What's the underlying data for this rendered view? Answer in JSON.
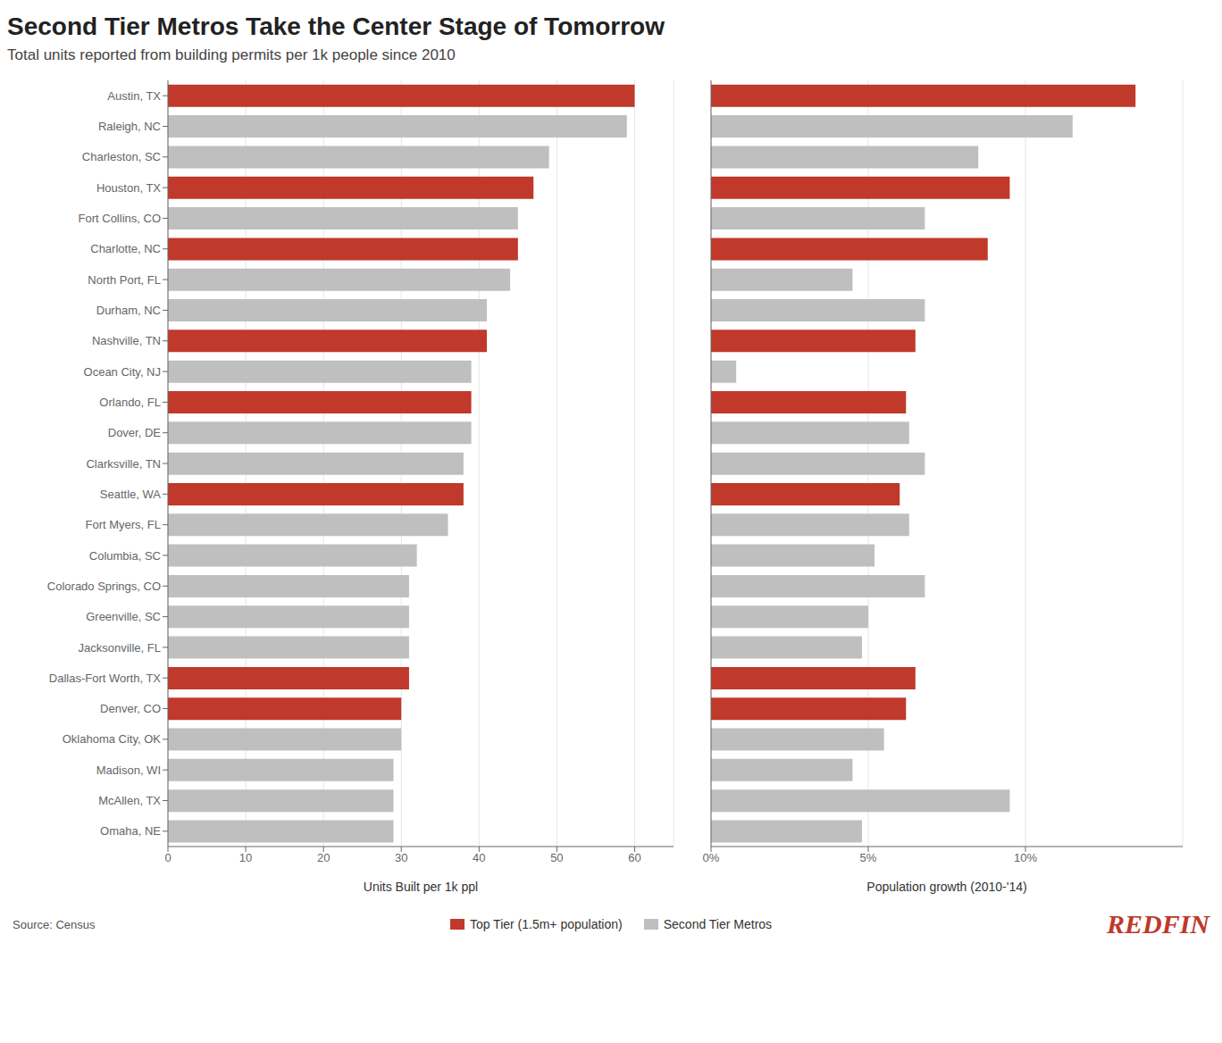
{
  "chart_data": [
    {
      "type": "bar",
      "orientation": "horizontal",
      "stacked": true,
      "title": "Second Tier Metros Take the Center Stage of Tomorrow",
      "subtitle": "Total units reported from building permits per 1k people since 2010",
      "x_label": "Units Built per 1k ppl",
      "categories": [
        "Austin, TX",
        "Raleigh, NC",
        "Charleston, SC",
        "Houston, TX",
        "Fort Collins, CO",
        "Charlotte, NC",
        "North Port, FL",
        "Durham, NC",
        "Nashville, TN",
        "Ocean City, NJ",
        "Orlando, FL",
        "Dover, DE",
        "Clarksville, TN",
        "Seattle, WA",
        "Fort Myers, FL",
        "Columbia, SC",
        "Colorado Springs, CO",
        "Greenville, SC",
        "Jacksonville, FL",
        "Dallas-Fort Worth, TX",
        "Denver, CO",
        "Oklahoma City, OK",
        "Madison, WI",
        "McAllen, TX",
        "Omaha, NE"
      ],
      "series": [
        {
          "name": "Top Tier (1.5m+ population)",
          "color": "#c0392b",
          "values": [
            60,
            null,
            null,
            47,
            null,
            45,
            null,
            null,
            41,
            null,
            39,
            null,
            null,
            38,
            null,
            null,
            null,
            null,
            null,
            31,
            30,
            null,
            null,
            null,
            null
          ]
        },
        {
          "name": "Second Tier Metros",
          "color": "#c0bfc0",
          "values": [
            null,
            59,
            49,
            null,
            45,
            null,
            44,
            41,
            null,
            39,
            null,
            39,
            38,
            null,
            36,
            32,
            31,
            31,
            31,
            null,
            null,
            30,
            29,
            29,
            29
          ]
        }
      ],
      "xlim": [
        0,
        65
      ],
      "xticks": [
        0,
        10,
        20,
        30,
        40,
        50,
        60
      ],
      "grid": true,
      "legend": "bottom",
      "annotations": [
        {
          "text": "Source: Census"
        },
        {
          "text": "REDFIN",
          "color": "#c0392b"
        }
      ]
    },
    {
      "type": "bar",
      "orientation": "horizontal",
      "stacked": true,
      "x_label": "Population growth (2010-'14)",
      "categories": [
        "Austin, TX",
        "Raleigh, NC",
        "Charleston, SC",
        "Houston, TX",
        "Fort Collins, CO",
        "Charlotte, NC",
        "North Port, FL",
        "Durham, NC",
        "Nashville, TN",
        "Ocean City, NJ",
        "Orlando, FL",
        "Dover, DE",
        "Clarksville, TN",
        "Seattle, WA",
        "Fort Myers, FL",
        "Columbia, SC",
        "Colorado Springs, CO",
        "Greenville, SC",
        "Jacksonville, FL",
        "Dallas-Fort Worth, TX",
        "Denver, CO",
        "Oklahoma City, OK",
        "Madison, WI",
        "McAllen, TX",
        "Omaha, NE"
      ],
      "series": [
        {
          "name": "Top Tier (1.5m+ population)",
          "color": "#c0392b",
          "values": [
            13.5,
            null,
            null,
            9.5,
            null,
            8.8,
            null,
            null,
            6.5,
            null,
            6.2,
            null,
            null,
            6.0,
            null,
            null,
            null,
            null,
            null,
            6.5,
            6.2,
            null,
            null,
            null,
            null
          ]
        },
        {
          "name": "Second Tier Metros",
          "color": "#c0bfc0",
          "values": [
            null,
            11.5,
            8.5,
            null,
            6.8,
            null,
            4.5,
            6.8,
            null,
            0.8,
            null,
            6.3,
            6.8,
            null,
            6.3,
            5.2,
            6.8,
            5.0,
            4.8,
            null,
            null,
            5.5,
            4.5,
            9.5,
            4.8
          ]
        }
      ],
      "xlim": [
        0,
        15
      ],
      "xticks": [
        {
          "value": 0,
          "label": "0%"
        },
        {
          "value": 5,
          "label": "5%"
        },
        {
          "value": 10,
          "label": "10%"
        }
      ],
      "grid": true,
      "tick_labels": "x"
    }
  ]
}
